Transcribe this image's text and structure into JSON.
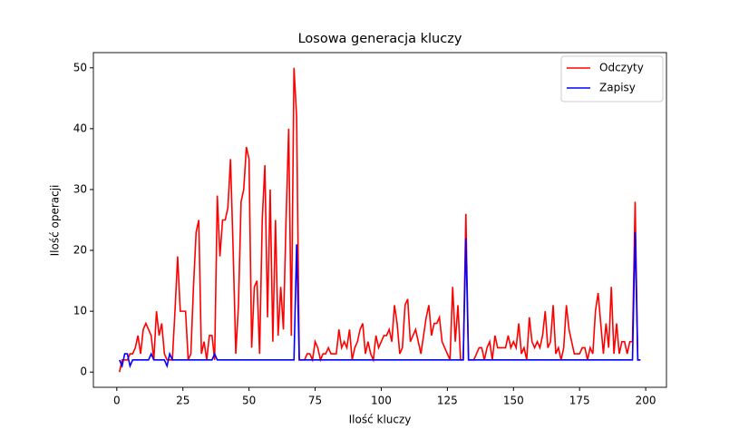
{
  "chart_data": {
    "type": "line",
    "title": "Losowa generacja kluczy",
    "xlabel": "Ilość kluczy",
    "ylabel": "Ilość operacji",
    "x": [
      1,
      2,
      3,
      4,
      5,
      6,
      7,
      8,
      9,
      10,
      11,
      12,
      13,
      14,
      15,
      16,
      17,
      18,
      19,
      20,
      21,
      22,
      23,
      24,
      25,
      26,
      27,
      28,
      29,
      30,
      31,
      32,
      33,
      34,
      35,
      36,
      37,
      38,
      39,
      40,
      41,
      42,
      43,
      44,
      45,
      46,
      47,
      48,
      49,
      50,
      51,
      52,
      53,
      54,
      55,
      56,
      57,
      58,
      59,
      60,
      61,
      62,
      63,
      64,
      65,
      66,
      67,
      68,
      69,
      70,
      71,
      72,
      73,
      74,
      75,
      76,
      77,
      78,
      79,
      80,
      81,
      82,
      83,
      84,
      85,
      86,
      87,
      88,
      89,
      90,
      91,
      92,
      93,
      94,
      95,
      96,
      97,
      98,
      99,
      100,
      101,
      102,
      103,
      104,
      105,
      106,
      107,
      108,
      109,
      110,
      111,
      112,
      113,
      114,
      115,
      116,
      117,
      118,
      119,
      120,
      121,
      122,
      123,
      124,
      125,
      126,
      127,
      128,
      129,
      130,
      131,
      132,
      133,
      134,
      135,
      136,
      137,
      138,
      139,
      140,
      141,
      142,
      143,
      144,
      145,
      146,
      147,
      148,
      149,
      150,
      151,
      152,
      153,
      154,
      155,
      156,
      157,
      158,
      159,
      160,
      161,
      162,
      163,
      164,
      165,
      166,
      167,
      168,
      169,
      170,
      171,
      172,
      173,
      174,
      175,
      176,
      177,
      178,
      179,
      180,
      181,
      182,
      183,
      184,
      185,
      186,
      187,
      188,
      189,
      190,
      191,
      192,
      193,
      194,
      195,
      196,
      197,
      198
    ],
    "series": [
      {
        "name": "Odczyty",
        "color": "#ff0000",
        "values": [
          0,
          2,
          2,
          2,
          3,
          3,
          4,
          6,
          3,
          7,
          8,
          7,
          6,
          2,
          10,
          6,
          8,
          3,
          2,
          2,
          2,
          10,
          19,
          10,
          10,
          10,
          2,
          3,
          14,
          23,
          25,
          3,
          5,
          2,
          6,
          6,
          2,
          29,
          19,
          25,
          25,
          27,
          35,
          20,
          3,
          11,
          28,
          30,
          37,
          35,
          4,
          14,
          15,
          3,
          25,
          34,
          9,
          30,
          5,
          25,
          6,
          14,
          7,
          25,
          40,
          6,
          50,
          42,
          2,
          2,
          2,
          3,
          3,
          2,
          5,
          4,
          2,
          3,
          3,
          4,
          3,
          3,
          3,
          7,
          4,
          5,
          4,
          7,
          2,
          4,
          5,
          7,
          8,
          3,
          5,
          3,
          2,
          6,
          4,
          5,
          6,
          6,
          7,
          5,
          11,
          8,
          3,
          4,
          11,
          12,
          5,
          6,
          7,
          5,
          3,
          6,
          9,
          11,
          6,
          8,
          8,
          9,
          5,
          4,
          3,
          2,
          14,
          5,
          11,
          2,
          2,
          26,
          2,
          2,
          2,
          3,
          4,
          4,
          2,
          4,
          5,
          2,
          6,
          4,
          4,
          4,
          4,
          6,
          4,
          5,
          4,
          8,
          3,
          4,
          2,
          9,
          5,
          4,
          5,
          4,
          6,
          10,
          4,
          5,
          11,
          3,
          4,
          2,
          4,
          11,
          7,
          5,
          3,
          3,
          3,
          4,
          4,
          2,
          4,
          3,
          10,
          13,
          8,
          3,
          8,
          4,
          14,
          3,
          8,
          3,
          5,
          5,
          3,
          5,
          5,
          28,
          2,
          2
        ]
      },
      {
        "name": "Zapisy",
        "color": "#0000ff",
        "values": [
          2,
          1,
          3,
          3,
          1,
          2,
          2,
          2,
          2,
          2,
          2,
          2,
          3,
          2,
          2,
          2,
          2,
          2,
          1,
          3,
          2,
          2,
          2,
          2,
          2,
          2,
          2,
          2,
          2,
          2,
          2,
          2,
          2,
          2,
          2,
          2,
          3,
          2,
          2,
          2,
          2,
          2,
          2,
          2,
          2,
          2,
          2,
          2,
          2,
          2,
          2,
          2,
          2,
          2,
          2,
          2,
          2,
          2,
          2,
          2,
          2,
          2,
          2,
          2,
          2,
          2,
          2,
          21,
          2,
          2,
          2,
          2,
          2,
          2,
          2,
          2,
          2,
          2,
          2,
          2,
          2,
          2,
          2,
          2,
          2,
          2,
          2,
          2,
          2,
          2,
          2,
          2,
          2,
          2,
          2,
          2,
          2,
          2,
          2,
          2,
          2,
          2,
          2,
          2,
          2,
          2,
          2,
          2,
          2,
          2,
          2,
          2,
          2,
          2,
          2,
          2,
          2,
          2,
          2,
          2,
          2,
          2,
          2,
          2,
          2,
          2,
          2,
          2,
          2,
          2,
          2,
          22,
          2,
          2,
          2,
          2,
          2,
          2,
          2,
          2,
          2,
          2,
          2,
          2,
          2,
          2,
          2,
          2,
          2,
          2,
          2,
          2,
          2,
          2,
          2,
          2,
          2,
          2,
          2,
          2,
          2,
          2,
          2,
          2,
          2,
          2,
          2,
          2,
          2,
          2,
          2,
          2,
          2,
          2,
          2,
          2,
          2,
          2,
          2,
          2,
          2,
          2,
          2,
          2,
          2,
          2,
          2,
          2,
          2,
          2,
          2,
          2,
          2,
          2,
          2,
          23,
          2,
          2
        ]
      }
    ],
    "xlim": [
      -8.85,
      207.85
    ],
    "xticks": [
      0,
      25,
      50,
      75,
      100,
      125,
      150,
      175,
      200
    ],
    "ylim": [
      -2.5,
      52.5
    ],
    "yticks": [
      0,
      10,
      20,
      30,
      40,
      50
    ],
    "legend": "upper right",
    "grid": false
  }
}
